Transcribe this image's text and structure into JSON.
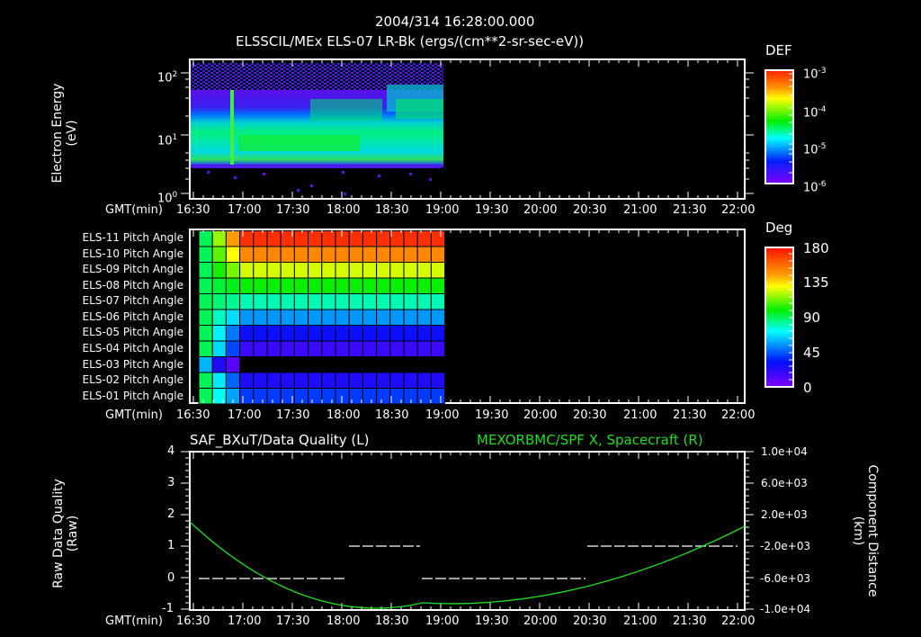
{
  "header": {
    "timestamp": "2004/314 16:28:00.000",
    "title": "ELSSCIL/MEx ELS-07 LR-Bk  (ergs/(cm**2-sr-sec-eV))"
  },
  "time_axis": {
    "label": "GMT(min)",
    "ticks": [
      "16:30",
      "17:00",
      "17:30",
      "18:00",
      "18:30",
      "19:00",
      "19:30",
      "20:00",
      "20:30",
      "21:00",
      "21:30",
      "22:00"
    ]
  },
  "panel1": {
    "ylabel_line1": "Electron Energy",
    "ylabel_line2": "(eV)",
    "yticks": [
      {
        "base": "10",
        "exp": "0"
      },
      {
        "base": "10",
        "exp": "1"
      },
      {
        "base": "10",
        "exp": "2"
      }
    ],
    "colorbar": {
      "title": "DEF",
      "ticks": [
        {
          "base": "10",
          "exp": "-3"
        },
        {
          "base": "10",
          "exp": "-4"
        },
        {
          "base": "10",
          "exp": "-5"
        },
        {
          "base": "10",
          "exp": "-6"
        }
      ]
    }
  },
  "panel2": {
    "rows": [
      "ELS-11 Pitch Angle",
      "ELS-10 Pitch Angle",
      "ELS-09 Pitch Angle",
      "ELS-08 Pitch Angle",
      "ELS-07 Pitch Angle",
      "ELS-06 Pitch Angle",
      "ELS-05 Pitch Angle",
      "ELS-04 Pitch Angle",
      "ELS-03 Pitch Angle",
      "ELS-02 Pitch Angle",
      "ELS-01 Pitch Angle"
    ],
    "colorbar": {
      "title": "Deg",
      "ticks": [
        "180",
        "135",
        "90",
        "45",
        "0"
      ]
    }
  },
  "panel3": {
    "left_title": "SAF_BXuT/Data Quality (L)",
    "right_title": "MEXORBMC/SPF X, Spacecraft (R)",
    "ylabel_left_line1": "Raw Data Quality",
    "ylabel_left_line2": "(Raw)",
    "ylabel_right_line1": "Component Distance",
    "ylabel_right_line2": "(km)",
    "yticks_left": [
      "4",
      "3",
      "2",
      "1",
      "0",
      "-1"
    ],
    "yticks_right": [
      "1.0e+04",
      "6.0e+03",
      "2.0e+03",
      "-2.0e+03",
      "-6.0e+03",
      "-1.0e+04"
    ]
  },
  "colors": {
    "background": "#000000",
    "axis": "#ffffff",
    "spacecraft_line": "#22dd22",
    "quality_line": "#ffffff"
  },
  "chart_data": [
    {
      "type": "heatmap",
      "title": "ELSSCIL/MEx ELS-07 LR-Bk (ergs/(cm**2-sr-sec-eV))",
      "xlabel": "GMT(min)",
      "ylabel": "Electron Energy (eV)",
      "x_range": [
        "16:30",
        "22:00"
      ],
      "data_extent": [
        "16:33",
        "19:00"
      ],
      "y_scale": "log",
      "ylim": [
        1,
        150
      ],
      "colorbar": {
        "label": "DEF",
        "scale": "log",
        "range": [
          1e-06,
          0.001
        ]
      },
      "features": [
        {
          "description": "broad green band ~5-30 eV across data interval"
        },
        {
          "description": "spike near 16:58 extending from ~3 eV upward"
        },
        {
          "description": "enhanced flux ~4-8 eV between 17:00 and 17:45"
        },
        {
          "description": "step increase in upper energies near 18:23"
        }
      ]
    },
    {
      "type": "heatmap",
      "title": "ELS Pitch Angle",
      "xlabel": "GMT(min)",
      "x_range": [
        "16:30",
        "22:00"
      ],
      "data_extent": [
        "16:36",
        "19:00"
      ],
      "categories": [
        "ELS-11",
        "ELS-10",
        "ELS-09",
        "ELS-08",
        "ELS-07",
        "ELS-06",
        "ELS-05",
        "ELS-04",
        "ELS-03",
        "ELS-02",
        "ELS-01"
      ],
      "colorbar": {
        "label": "Deg",
        "range": [
          0,
          180
        ]
      },
      "steady_values_deg": [
        172,
        150,
        125,
        100,
        80,
        55,
        30,
        18,
        null,
        25,
        40
      ],
      "notes": "ELS-03 only has data 16:36-16:46"
    },
    {
      "type": "line",
      "xlabel": "GMT(min)",
      "x_range": [
        "16:30",
        "22:00"
      ],
      "series": [
        {
          "name": "SAF_BXuT/Data Quality (L)",
          "axis": "left",
          "ylim": [
            -1,
            4
          ],
          "segments": [
            {
              "x": [
                "16:36",
                "18:02"
              ],
              "y": 0
            },
            {
              "x": [
                "18:03",
                "18:46"
              ],
              "y": 1
            },
            {
              "x": [
                "18:47",
                "20:28"
              ],
              "y": 0
            },
            {
              "x": [
                "20:29",
                "22:00"
              ],
              "y": 1
            }
          ]
        },
        {
          "name": "MEXORBMC/SPF X, Spacecraft (R)",
          "axis": "right",
          "ylim": [
            -10000,
            10000
          ],
          "x": [
            "16:30",
            "17:00",
            "17:30",
            "18:00",
            "18:30",
            "19:00",
            "19:30",
            "20:00",
            "20:30",
            "21:00",
            "21:30",
            "22:00"
          ],
          "values": [
            3000,
            -1500,
            -5000,
            -7600,
            -9000,
            -9400,
            -9000,
            -7800,
            -6000,
            -3800,
            -1200,
            900
          ]
        }
      ]
    }
  ]
}
